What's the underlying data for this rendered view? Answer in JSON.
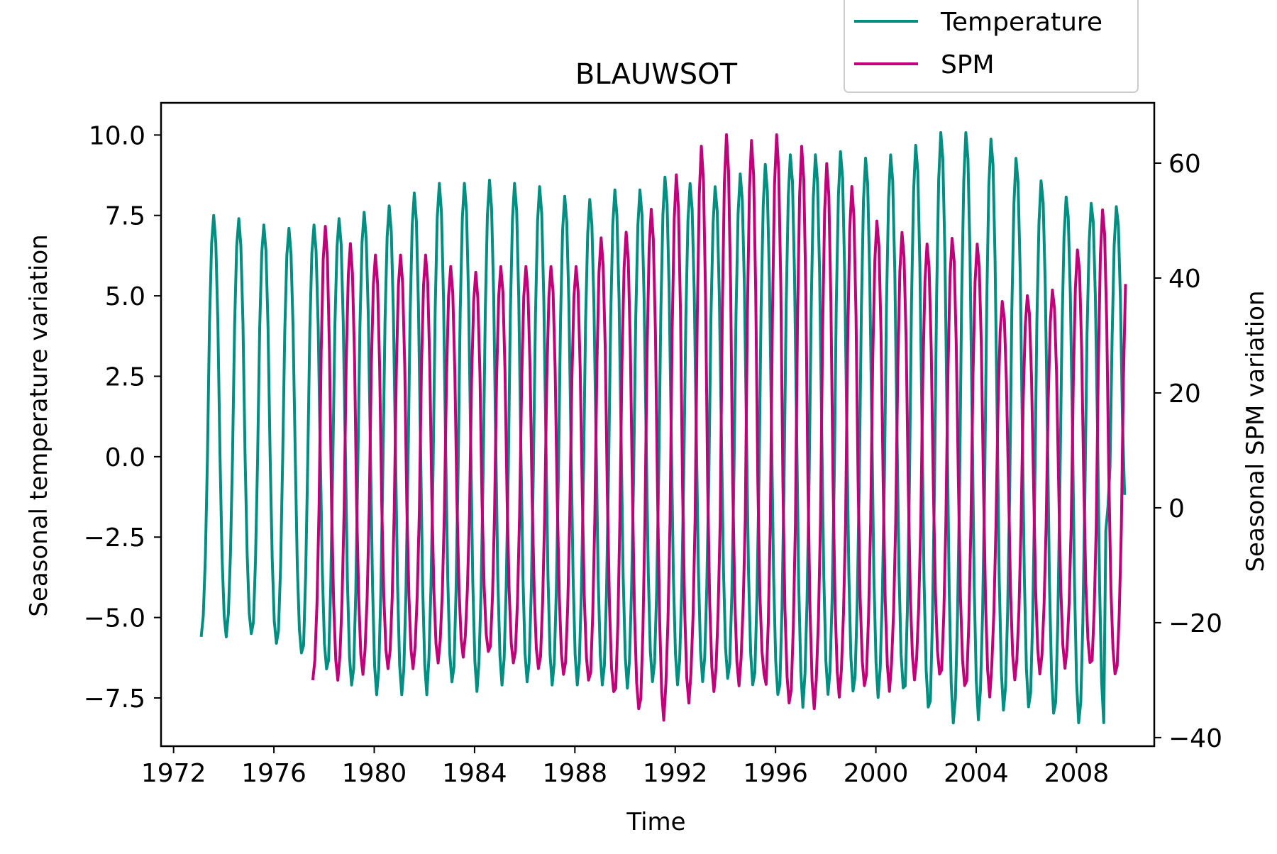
{
  "chart_data": {
    "type": "line",
    "title": "BLAUWSOT",
    "xlabel": "Time",
    "ylabel_left": "Seasonal temperature variation",
    "ylabel_right": "Seasonal SPM variation",
    "xlim": [
      1971.5,
      2011.1
    ],
    "ylim_left": [
      -9.0,
      11.0
    ],
    "ylim_right": [
      -41.5,
      70.5
    ],
    "x_ticks": [
      1972,
      1976,
      1980,
      1984,
      1988,
      1992,
      1996,
      2000,
      2004,
      2008
    ],
    "x_tick_labels": [
      "1972",
      "1976",
      "1980",
      "1984",
      "1988",
      "1992",
      "1996",
      "2000",
      "2004",
      "2008"
    ],
    "y_left_ticks": [
      -7.5,
      -5.0,
      -2.5,
      0.0,
      2.5,
      5.0,
      7.5,
      10.0
    ],
    "y_left_tick_labels": [
      "−7.5",
      "−5.0",
      "−2.5",
      "0.0",
      "2.5",
      "5.0",
      "7.5",
      "10.0"
    ],
    "y_right_ticks": [
      -40,
      -20,
      0,
      20,
      40,
      60
    ],
    "y_right_tick_labels": [
      "−40",
      "−20",
      "0",
      "20",
      "40",
      "60"
    ],
    "grid": false,
    "legend_position": "top-right (above plot)",
    "series": [
      {
        "name": "Temperature",
        "axis": "left",
        "color": "#008f80",
        "start_year": 1973.1,
        "end_year": 2010.0,
        "step_years": 0.0833,
        "peak_amplitudes": [
          7.5,
          7.4,
          7.2,
          7.1,
          7.2,
          7.4,
          7.6,
          7.8,
          8.2,
          8.5,
          8.5,
          8.6,
          8.5,
          8.4,
          8.1,
          8.0,
          8.3,
          8.3,
          8.7,
          8.5,
          8.4,
          8.8,
          9.1,
          9.4,
          9.4,
          9.5,
          9.3,
          9.4,
          9.7,
          10.1,
          10.1,
          9.9,
          9.3,
          8.6,
          8.1,
          7.9,
          7.8
        ],
        "trough_amplitudes": [
          -5.6,
          -5.5,
          -5.8,
          -6.1,
          -6.6,
          -7.1,
          -7.4,
          -7.4,
          -7.4,
          -7.0,
          -7.3,
          -7.1,
          -7.0,
          -7.1,
          -7.1,
          -7.1,
          -7.2,
          -7.0,
          -7.1,
          -7.0,
          -6.9,
          -7.1,
          -7.4,
          -7.8,
          -7.4,
          -7.3,
          -7.5,
          -7.2,
          -7.8,
          -8.3,
          -8.2,
          -7.9,
          -7.8,
          -8.0,
          -8.3,
          -8.3,
          -2.5
        ]
      },
      {
        "name": "SPM",
        "axis": "right",
        "color": "#c2007a",
        "start_year": 1977.55,
        "end_year": 2010.0,
        "step_years": 0.0833,
        "peak_amplitudes": [
          49,
          46,
          44,
          44,
          44,
          42,
          41,
          42,
          42,
          42,
          42,
          47,
          48,
          52,
          58,
          63,
          65,
          64,
          65,
          63,
          60,
          56,
          50,
          48,
          46,
          47,
          46,
          36,
          37,
          38,
          45,
          52,
          46,
          44
        ],
        "trough_amplitudes": [
          -30,
          -29,
          -28,
          -28,
          -27,
          -26,
          -25,
          -27,
          -28,
          -29,
          -30,
          -32,
          -35,
          -37,
          -34,
          -32,
          -31,
          -29,
          -34,
          -35,
          -33,
          -31,
          -32,
          -30,
          -29,
          -31,
          -33,
          -30,
          -29,
          -28,
          -27,
          -29,
          -30,
          -28
        ]
      }
    ]
  }
}
